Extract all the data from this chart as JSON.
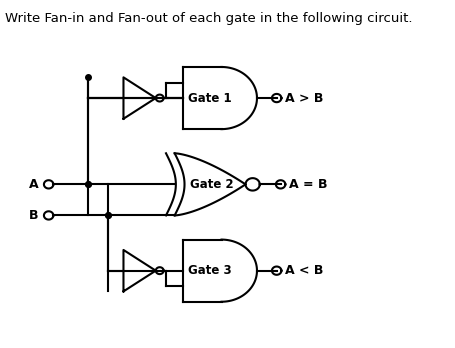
{
  "title": "Write Fan-in and Fan-out of each gate in the following circuit.",
  "title_fontsize": 9.5,
  "bg_color": "#ffffff",
  "line_color": "#000000",
  "gate1_label": "Gate 1",
  "gate2_label": "Gate 2",
  "gate3_label": "Gate 3",
  "out1_label": "A > B",
  "out2_label": "A = B",
  "out3_label": "A < B",
  "inA_label": "A",
  "inB_label": "B",
  "fig_w": 4.55,
  "fig_h": 3.48,
  "dpi": 100
}
